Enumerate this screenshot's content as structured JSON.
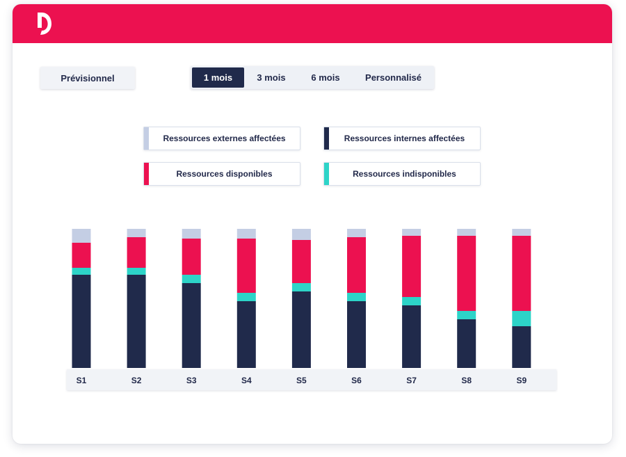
{
  "controls": {
    "forecast_label": "Prévisionnel",
    "ranges": [
      {
        "label": "1 mois",
        "active": true
      },
      {
        "label": "3 mois",
        "active": false
      },
      {
        "label": "6 mois",
        "active": false
      },
      {
        "label": "Personnalisé",
        "active": false
      }
    ]
  },
  "colors": {
    "brand": "#ec1150",
    "navy": "#202a4b",
    "external": "#c4cee4",
    "available": "#ec1150",
    "unavailable": "#2dd4c8"
  },
  "icons": {
    "logo": "brand-d-logo"
  },
  "chart_data": {
    "type": "bar",
    "stacked": true,
    "grid": false,
    "legend_position": "top",
    "categories": [
      "S1",
      "S2",
      "S3",
      "S4",
      "S5",
      "S6",
      "S7",
      "S8",
      "S9"
    ],
    "ylim": [
      0,
      100
    ],
    "series": [
      {
        "name": "Ressources internes affectées",
        "color": "#202a4b",
        "values": [
          67,
          67,
          61,
          48,
          55,
          48,
          45,
          35,
          30
        ]
      },
      {
        "name": "Ressources indisponibles",
        "color": "#2dd4c8",
        "values": [
          5,
          5,
          6,
          6,
          6,
          6,
          6,
          6,
          11
        ]
      },
      {
        "name": "Ressources disponibles",
        "color": "#ec1150",
        "values": [
          18,
          22,
          26,
          39,
          31,
          40,
          44,
          54,
          54
        ]
      },
      {
        "name": "Ressources externes affectées",
        "color": "#c4cee4",
        "values": [
          10,
          6,
          7,
          7,
          8,
          6,
          5,
          5,
          5
        ]
      }
    ]
  },
  "legend": [
    {
      "label": "Ressources externes affectées",
      "color": "#c4cee4"
    },
    {
      "label": "Ressources internes affectées",
      "color": "#202a4b"
    },
    {
      "label": "Ressources disponibles",
      "color": "#ec1150"
    },
    {
      "label": "Ressources indisponibles",
      "color": "#2dd4c8"
    }
  ]
}
